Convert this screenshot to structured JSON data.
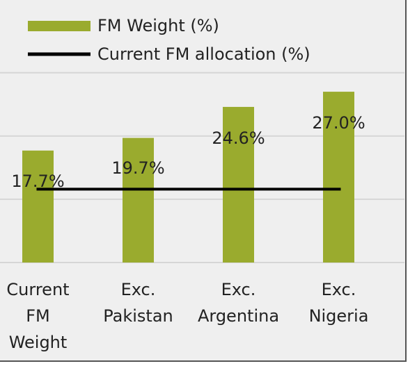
{
  "chart_data": {
    "type": "bar",
    "categories": [
      "Current FM Weight",
      "Exc. Pakistan",
      "Exc. Argentina",
      "Exc. Nigeria"
    ],
    "series": [
      {
        "name": "FM Weight (%)",
        "color": "#9aab2e",
        "values": [
          17.7,
          19.7,
          24.6,
          27.0
        ],
        "value_labels": [
          "17.7%",
          "19.7%",
          "24.6%",
          "27.0%"
        ]
      }
    ],
    "reference_line": {
      "name": "Current FM allocation (%)",
      "color": "#000000",
      "value": 11.6
    },
    "ylim": [
      0,
      41.5
    ],
    "yticks": [
      0,
      10,
      20,
      30
    ],
    "grid": true
  }
}
